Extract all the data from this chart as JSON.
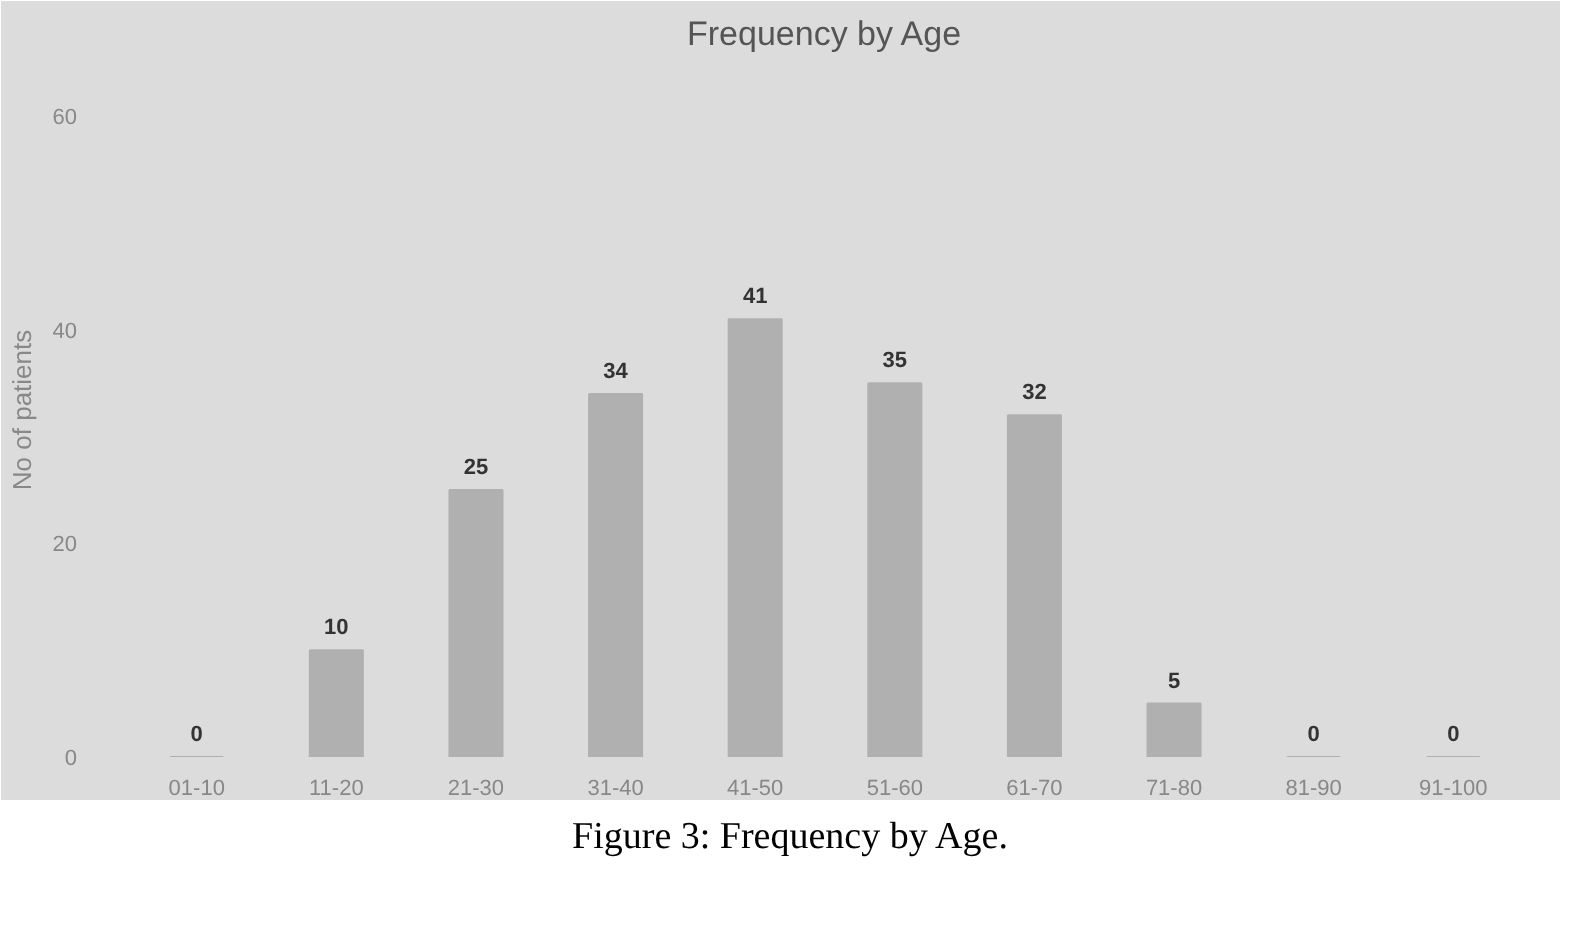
{
  "chart_data": {
    "type": "bar",
    "title": "Frequency by Age",
    "ylabel": "No of patients",
    "categories": [
      "01-10",
      "11-20",
      "21-30",
      "31-40",
      "41-50",
      "51-60",
      "61-70",
      "71-80",
      "81-90",
      "91-100"
    ],
    "values": [
      0,
      10,
      25,
      34,
      41,
      35,
      32,
      5,
      0,
      0
    ],
    "color": "#b0b0b0",
    "ylim": [
      0,
      65
    ],
    "yticks": [
      0,
      20,
      40,
      60
    ],
    "data_labels": true,
    "grid": false,
    "annotations": [
      "Figure 3: Frequency by Age."
    ]
  }
}
